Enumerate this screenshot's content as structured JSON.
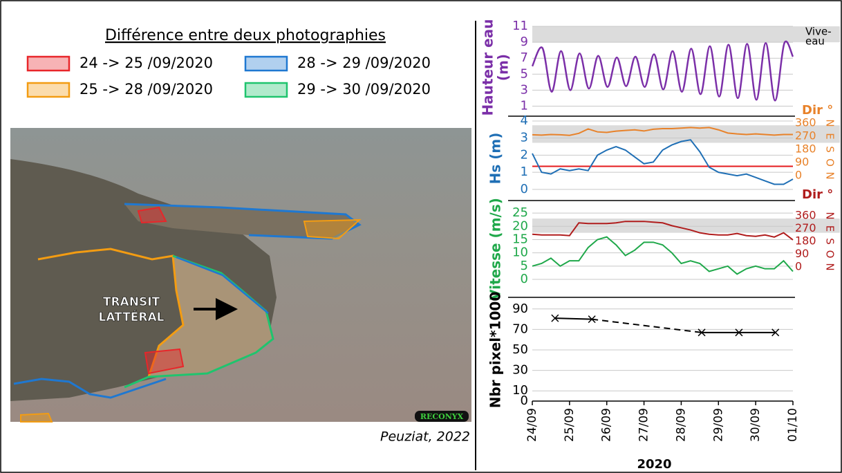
{
  "legend": {
    "title": "Différence entre deux photographies",
    "items": [
      {
        "label": "24 -> 25 /09/2020",
        "color": "#e8262a"
      },
      {
        "label": "28 -> 29 /09/2020",
        "color": "#1f78d1"
      },
      {
        "label": "25 -> 28 /09/2020",
        "color": "#f39c12"
      },
      {
        "label": "29 -> 30 /09/2020",
        "color": "#1fc46e"
      }
    ]
  },
  "photo": {
    "annotation": [
      "TRANSIT",
      "LATTÉRAL"
    ],
    "logo": "RECONYX",
    "credit": "Peuziat, 2022"
  },
  "chart_data": [
    {
      "type": "line",
      "ylabel": [
        "Hauteur eau",
        "(m)"
      ],
      "ylabel_color": "#7b2fa8",
      "xlim": [
        0,
        7
      ],
      "ylim": [
        0,
        11.7
      ],
      "yticks": [
        1,
        3,
        5,
        7,
        9,
        11
      ],
      "grid": true,
      "smooth": true,
      "band": {
        "range": [
          9,
          11
        ],
        "axis": "y"
      },
      "band_label": [
        "Vive-",
        "eau"
      ],
      "x": [
        0,
        0.27,
        0.52,
        0.77,
        1.02,
        1.27,
        1.52,
        1.77,
        2.02,
        2.27,
        2.52,
        2.77,
        3.02,
        3.27,
        3.52,
        3.77,
        4.02,
        4.27,
        4.52,
        4.77,
        5.02,
        5.27,
        5.52,
        5.77,
        6.02,
        6.27,
        6.52,
        6.77,
        7
      ],
      "series": [
        {
          "color": "#7b2fa8",
          "axis": "y",
          "values": [
            6.0,
            8.3,
            2.8,
            7.9,
            3.0,
            7.6,
            3.2,
            7.3,
            3.4,
            7.1,
            3.5,
            7.2,
            3.4,
            7.5,
            3.1,
            7.9,
            2.8,
            8.2,
            2.5,
            8.5,
            2.2,
            8.7,
            2.0,
            8.8,
            1.8,
            8.9,
            1.7,
            8.9,
            7.2
          ]
        }
      ]
    },
    {
      "type": "line",
      "ylabel": [
        "Hs (m)"
      ],
      "ylabel_color": "#1f6fb5",
      "xlim": [
        0,
        7
      ],
      "ylim": [
        -0.57,
        4.2
      ],
      "yticks": [
        0,
        1,
        2,
        3,
        4
      ],
      "grid": true,
      "y2lim": [
        -161,
        398
      ],
      "y2ticks": [
        0,
        90,
        180,
        270,
        360
      ],
      "y2label": "Dir °",
      "y2_color": "#e8822a",
      "y2_letters": [
        "N",
        "O",
        "S",
        "E",
        "N"
      ],
      "band": {
        "range": [
          225,
          345
        ],
        "axis": "y2"
      },
      "hline": {
        "value": 1.35,
        "color": "#e41a1c"
      },
      "x": [
        0,
        0.25,
        0.5,
        0.75,
        1,
        1.25,
        1.5,
        1.75,
        2,
        2.25,
        2.5,
        2.75,
        3,
        3.25,
        3.5,
        3.75,
        4,
        4.25,
        4.5,
        4.75,
        5,
        5.25,
        5.5,
        5.75,
        6,
        6.25,
        6.5,
        6.75,
        7
      ],
      "series": [
        {
          "color": "#1f6fb5",
          "axis": "y",
          "values": [
            2.1,
            1.0,
            0.9,
            1.2,
            1.1,
            1.2,
            1.1,
            2.0,
            2.3,
            2.5,
            2.3,
            1.9,
            1.5,
            1.6,
            2.3,
            2.6,
            2.8,
            2.9,
            2.2,
            1.3,
            1.0,
            0.9,
            0.8,
            0.9,
            0.7,
            0.5,
            0.3,
            0.3,
            0.6
          ]
        },
        {
          "color": "#e8822a",
          "axis": "y2",
          "values": [
            280,
            278,
            282,
            280,
            276,
            290,
            320,
            300,
            296,
            305,
            310,
            314,
            306,
            318,
            322,
            322,
            326,
            330,
            326,
            330,
            314,
            292,
            286,
            282,
            286,
            282,
            278,
            282,
            282
          ]
        }
      ]
    },
    {
      "type": "line",
      "ylabel": [
        "Vitesse (m/s)"
      ],
      "ylabel_color": "#1fa84a",
      "xlim": [
        0,
        7
      ],
      "ylim": [
        -6.25,
        29.2
      ],
      "yticks": [
        0,
        5,
        10,
        15,
        20,
        25
      ],
      "grid": true,
      "y2lim": [
        -204,
        457
      ],
      "y2ticks": [
        0,
        90,
        180,
        270,
        360
      ],
      "y2label": "Dir °",
      "y2_color": "#b01c1c",
      "y2_letters": [
        "N",
        "O",
        "S",
        "E",
        "N"
      ],
      "band": {
        "range": [
          240,
          340
        ],
        "axis": "y2"
      },
      "x": [
        0,
        0.25,
        0.5,
        0.75,
        1,
        1.25,
        1.5,
        1.75,
        2,
        2.25,
        2.5,
        2.75,
        3,
        3.25,
        3.5,
        3.75,
        4,
        4.25,
        4.5,
        4.75,
        5,
        5.25,
        5.5,
        5.75,
        6,
        6.25,
        6.5,
        6.75,
        7
      ],
      "series": [
        {
          "color": "#1fa84a",
          "axis": "y",
          "values": [
            5,
            6,
            8,
            5,
            7,
            7,
            12,
            15,
            16,
            13,
            9,
            11,
            14,
            14,
            13,
            10,
            6,
            7,
            6,
            3,
            4,
            5,
            2,
            4,
            5,
            4,
            4,
            7,
            3
          ]
        },
        {
          "color": "#b01c1c",
          "axis": "y2",
          "values": [
            230,
            225,
            225,
            225,
            220,
            310,
            305,
            305,
            305,
            310,
            320,
            320,
            320,
            315,
            310,
            290,
            275,
            260,
            240,
            230,
            225,
            225,
            235,
            220,
            215,
            225,
            210,
            240,
            190
          ]
        }
      ]
    },
    {
      "type": "line",
      "ylabel": [
        "Nbr pixel*1000"
      ],
      "ylabel_color": "#000000",
      "xlim": [
        0,
        7
      ],
      "ylim": [
        0,
        100
      ],
      "yticks": [
        0,
        10,
        30,
        50,
        70,
        90
      ],
      "grid": true,
      "marker": "x",
      "segment_styles": [
        "solid",
        "dashed",
        "solid",
        "solid"
      ],
      "x": [
        0.61,
        1.6,
        4.55,
        5.55,
        6.53
      ],
      "series": [
        {
          "color": "#000000",
          "axis": "y",
          "values": [
            81,
            80,
            67,
            67,
            67
          ]
        }
      ],
      "xticks": [
        {
          "value": 0,
          "label": "24/09"
        },
        {
          "value": 1,
          "label": "25/09"
        },
        {
          "value": 2,
          "label": "26/09"
        },
        {
          "value": 3,
          "label": "27/09"
        },
        {
          "value": 4,
          "label": "28/09"
        },
        {
          "value": 5,
          "label": "29/09"
        },
        {
          "value": 6,
          "label": "30/09"
        },
        {
          "value": 7,
          "label": "01/10"
        }
      ],
      "xlabel": "2020"
    }
  ]
}
